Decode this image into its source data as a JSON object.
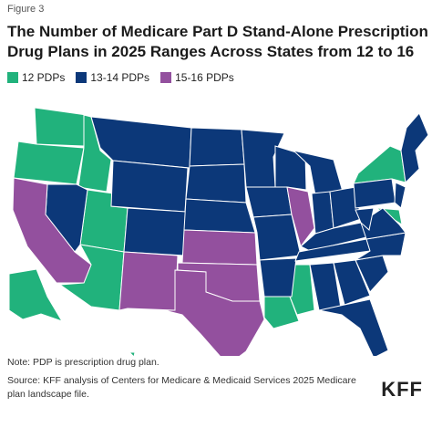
{
  "figure_label": "Figure 3",
  "title": "The Number of Medicare Part D Stand-Alone Prescription Drug Plans in 2025 Ranges Across States from 12 to 16",
  "legend": [
    {
      "label": "12 PDPs",
      "color": "#21b27c"
    },
    {
      "label": "13-14 PDPs",
      "color": "#0c3879"
    },
    {
      "label": "15-16 PDPs",
      "color": "#93509e"
    }
  ],
  "note": "Note: PDP is prescription drug plan.",
  "source": "Source: KFF analysis of Centers for Medicare & Medicaid Services 2025 Medicare plan landscape file.",
  "logo": "KFF"
}
